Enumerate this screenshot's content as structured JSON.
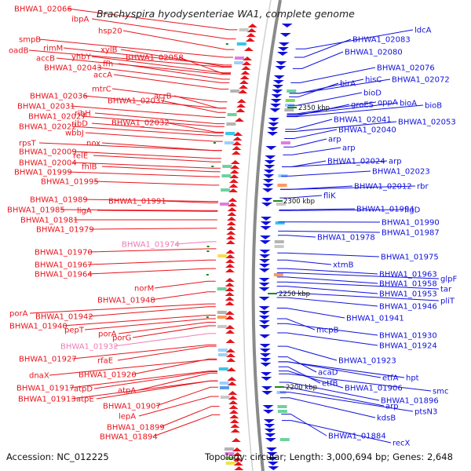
{
  "title": "Brachyspira hyodysenteriae WA1, complete genome",
  "accession": "Accession: NC_012225",
  "summary": "Topology: circular; Length: 3,000,694 bp; Genes: 2,648",
  "colors": {
    "reverse": "#e8141c",
    "forward": "#1010dd",
    "pseudo": "#f07ab4",
    "backbone": "#888888",
    "tick": "#1a8a1a"
  },
  "kbp_marks": [
    "2350 kbp",
    "2300 kbp",
    "2250 kbp",
    "2200 kbp"
  ],
  "left_labels": [
    "BHWA1_02066",
    "ibpA",
    "hsp20",
    "smpB",
    "rimM",
    "oadB",
    "xylB",
    "yhbY",
    "accB",
    "BHWA1_02058",
    "ffh",
    "BHWA1_02043",
    "accA",
    "mtrC",
    "BHWA1_02036",
    "acrB",
    "BHWA1_02037",
    "BHWA1_02031",
    "ribH",
    "BHWA1_02027",
    "ribD",
    "BHWA1_02032",
    "BHWA1_02022",
    "wbbJ",
    "rpsT",
    "nox",
    "BHWA1_02009",
    "relE",
    "BHWA1_02004",
    "fhlB",
    "BHWA1_01999",
    "BHWA1_01995",
    "BHWA1_01991",
    "BHWA1_01989",
    "BHWA1_01985",
    "ligA",
    "BHWA1_01981",
    "BHWA1_01979",
    "BHWA1_01974",
    "BHWA1_01970",
    "BHWA1_01967",
    "BHWA1_01964",
    "norM",
    "BHWA1_01948",
    "porA",
    "BHWA1_01942",
    "BHWA1_01940",
    "pepT",
    "porA",
    "porG",
    "BHWA1_01932",
    "BHWA1_01927",
    "rfaE",
    "dnaX",
    "BHWA1_01920",
    "BHWA1_01917",
    "atpD",
    "atpA",
    "BHWA1_01913",
    "atpE",
    "BHWA1_01907",
    "lepA",
    "BHWA1_01899",
    "BHWA1_01894"
  ],
  "right_labels": [
    "ldcA",
    "BHWA1_02083",
    "BHWA1_02080",
    "BHWA1_02076",
    "hisC",
    "BHWA1_02072",
    "birA",
    "bioD",
    "groES",
    "oppA",
    "bioA",
    "bioB",
    "BHWA1_02041",
    "BHWA1_02053",
    "BHWA1_02040",
    "arp",
    "arp",
    "BHWA1_02024",
    "arp",
    "BHWA1_02023",
    "BHWA1_02012",
    "rbr",
    "fliK",
    "BHWA1_01994",
    "flgD",
    "BHWA1_01990",
    "BHWA1_01987",
    "BHWA1_01978",
    "BHWA1_01975",
    "xtmB",
    "BHWA1_01963",
    "glpF",
    "BHWA1_01958",
    "tar",
    "BHWA1_01953",
    "pliT",
    "BHWA1_01946",
    "BHWA1_01941",
    "mcpB",
    "BHWA1_01930",
    "BHWA1_01924",
    "BHWA1_01923",
    "acaD",
    "etfA",
    "hpt",
    "etfB",
    "BHWA1_01906",
    "smc",
    "BHWA1_01896",
    "arp",
    "ptsN3",
    "kdsB",
    "BHWA1_01884",
    "recX"
  ]
}
